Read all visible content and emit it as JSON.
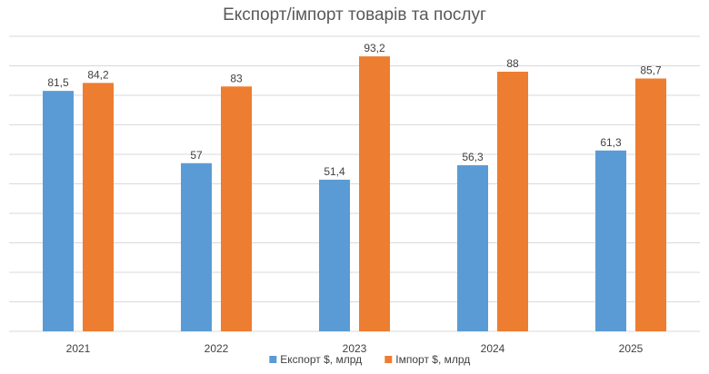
{
  "chart_data": {
    "type": "bar",
    "title": "Експорт/імпорт товарів та послуг",
    "categories": [
      "2021",
      "2022",
      "2023",
      "2024",
      "2025"
    ],
    "series": [
      {
        "name": "Експорт $, млрд",
        "color": "#5B9BD5",
        "values": [
          81.5,
          57,
          51.4,
          56.3,
          61.3
        ],
        "labels": [
          "81,5",
          "57",
          "51,4",
          "56,3",
          "61,3"
        ]
      },
      {
        "name": "Імпорт $, млрд",
        "color": "#ED7D31",
        "values": [
          84.2,
          83,
          93.2,
          88,
          85.7
        ],
        "labels": [
          "84,2",
          "83",
          "93,2",
          "88",
          "85,7"
        ]
      }
    ],
    "ylim": [
      0,
      100
    ],
    "y_gridline_step": 10,
    "y_tick_labels_shown": false,
    "grid": true,
    "legend": "bottom",
    "gridline_color": "#D9D9D9"
  }
}
